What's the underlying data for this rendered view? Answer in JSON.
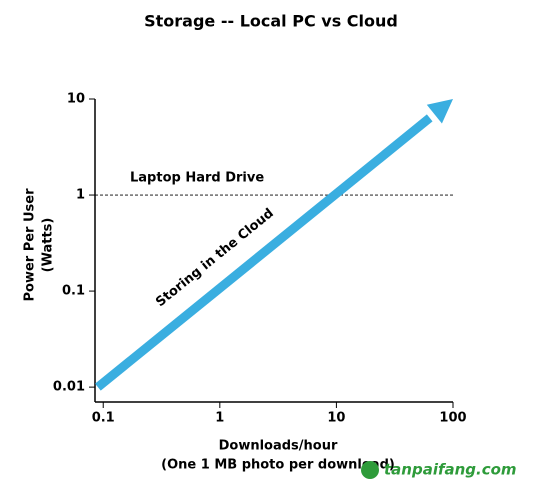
{
  "chart_data": {
    "type": "line",
    "title": "Storage -- Local PC vs Cloud",
    "x_label": "Downloads/hour",
    "x_sublabel": "(One 1 MB photo per download)",
    "y_label": "Power Per User",
    "y_sublabel": "(Watts)",
    "x_scale": "log",
    "y_scale": "log",
    "xlim": [
      0.085,
      100
    ],
    "xticks": [
      0.1,
      1,
      10,
      100
    ],
    "ylim": [
      0.007,
      10
    ],
    "yticks": [
      0.01,
      0.1,
      1,
      10
    ],
    "x": [
      0.09,
      100
    ],
    "series": [
      {
        "name": "Storing in the Cloud",
        "color": "#3aaee0",
        "values": [
          0.01,
          10
        ]
      }
    ],
    "hlines": [
      {
        "value": 1,
        "label": "Laptop Hard Drive"
      }
    ],
    "watermark": "tanpaifang.com"
  }
}
